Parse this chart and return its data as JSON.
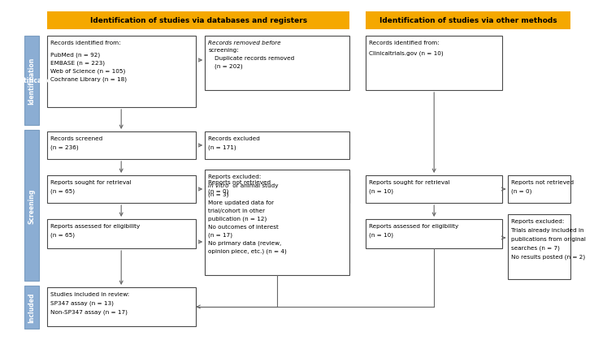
{
  "header1": "Identification of studies via databases and registers",
  "header2": "Identification of studies via other methods",
  "header_bg": "#F5A800",
  "box_border": "#4A4A4A",
  "box_bg": "#FFFFFF",
  "side_label_bg": "#8BADD3",
  "arrow_color": "#666666",
  "id_left_text": "Records identified from:\n\nPubMed (n = 92)\nEMBASE (n = 223)\nWeb of Science (n = 105)\nCochrane Library (n = 18)",
  "id_removed_text": "Records removed before\nscreening:\nDuplicate records removed\n(n = 202)",
  "id_right_text": "Records identified from:\nClinicaltrials.gov (n = 10)",
  "screened_text": "Records screened\n(n = 236)",
  "excluded_text": "Records excluded\n(n = 171)",
  "retrieval_left_text": "Reports sought for retrieval\n(n = 65)",
  "not_retrieved_left_text": "Reports not retrieved\n(n = 0)",
  "retrieval_right_text": "Reports sought for retrieval\n(n = 10)",
  "not_retrieved_right_text": "Reports not retrieved\n(n = 0)",
  "eligibility_left_text": "Reports assessed for eligibility\n(n = 65)",
  "excluded_left_line1": "Reports excluded:",
  "excluded_left_line2": "In vitro",
  "excluded_left_line3": " or animal study",
  "excluded_left_line4": "(n = 3)",
  "excluded_left_line5": "More updated data for",
  "excluded_left_line6": "trial/cohort in other",
  "excluded_left_line7": "publication (n = 12)",
  "excluded_left_line8": "No outcomes of interest",
  "excluded_left_line9": "(n = 17)",
  "excluded_left_line10": "No primary data (review,",
  "excluded_left_line11": "opinion piece, etc.) (n = 4)",
  "eligibility_right_text": "Reports assessed for eligibility\n(n = 10)",
  "excluded_right_text": "Reports excluded:\nTrials already included in\npublications from original\nsearches (n = 7)\nNo results posted (n = 2)",
  "included_text": "Studies included in review:\nSP347 assay (n = 13)\nNon-SP347 assay (n = 17)"
}
